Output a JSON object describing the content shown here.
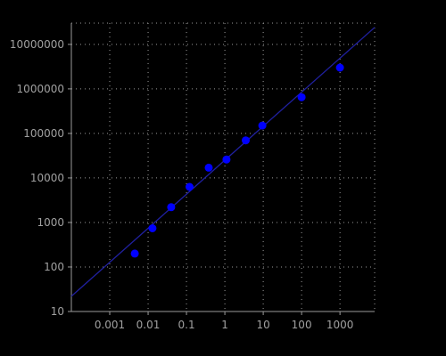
{
  "chart_data": {
    "type": "scatter",
    "title": "",
    "xlabel": "",
    "ylabel": "",
    "x_scale": "log",
    "y_scale": "log",
    "xlim": [
      0.0001,
      8000
    ],
    "ylim": [
      10,
      30000000
    ],
    "grid": true,
    "x_ticks": [
      0.001,
      0.01,
      0.1,
      1,
      10,
      100,
      1000
    ],
    "x_tick_labels": [
      "0.001",
      "0.01",
      "0.1",
      "1",
      "10",
      "100",
      "1000"
    ],
    "y_ticks": [
      10,
      100,
      1000,
      10000,
      100000,
      1000000,
      10000000
    ],
    "y_tick_labels": [
      "10",
      "100",
      "1000",
      "10000",
      "100000",
      "1000000",
      "10000000"
    ],
    "series": [
      {
        "type": "scatter",
        "color": "#0000ff",
        "points": [
          {
            "x": 0.0045,
            "y": 200
          },
          {
            "x": 0.013,
            "y": 740
          },
          {
            "x": 0.04,
            "y": 2200
          },
          {
            "x": 0.12,
            "y": 6300
          },
          {
            "x": 0.38,
            "y": 17000
          },
          {
            "x": 1.1,
            "y": 26000
          },
          {
            "x": 3.5,
            "y": 70000
          },
          {
            "x": 9.5,
            "y": 150000
          },
          {
            "x": 100,
            "y": 650000
          },
          {
            "x": 1000,
            "y": 3000000
          }
        ]
      },
      {
        "type": "line",
        "color": "#2020a0",
        "points": [
          {
            "x": 0.0001,
            "y": 22
          },
          {
            "x": 8000,
            "y": 24000000
          }
        ]
      }
    ]
  }
}
